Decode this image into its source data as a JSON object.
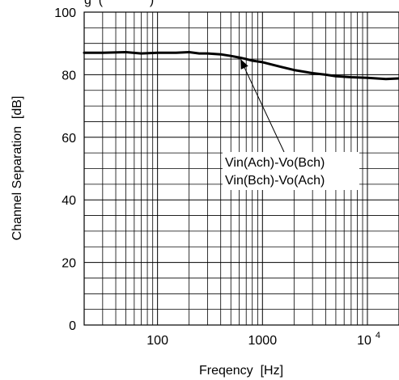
{
  "chart_data": {
    "type": "line",
    "title_fragment": "g  (             )",
    "xlabel": "Freqency  [Hz]",
    "ylabel": "Channel Separation  [dB]",
    "xscale": "log",
    "xlim": [
      20,
      20000
    ],
    "ylim": [
      0,
      100
    ],
    "grid": true,
    "x_ticks": [
      {
        "value": 100,
        "label": "100"
      },
      {
        "value": 1000,
        "label": "1000"
      },
      {
        "value": 10000,
        "label": "10",
        "sup": "4"
      }
    ],
    "y_ticks": [
      {
        "value": 0,
        "label": "0"
      },
      {
        "value": 20,
        "label": "20"
      },
      {
        "value": 40,
        "label": "40"
      },
      {
        "value": 60,
        "label": "60"
      },
      {
        "value": 80,
        "label": "80"
      },
      {
        "value": 100,
        "label": "100"
      }
    ],
    "series": [
      {
        "x": [
          20,
          30,
          50,
          70,
          100,
          150,
          200,
          250,
          300,
          400,
          500,
          600,
          700,
          800,
          1000,
          1500,
          2000,
          3000,
          4000,
          5000,
          7000,
          10000,
          15000,
          20000
        ],
        "y": [
          87,
          87,
          87.2,
          86.8,
          87,
          87,
          87.2,
          86.8,
          86.8,
          86.5,
          86,
          85.5,
          85,
          84.5,
          84,
          82.5,
          81.5,
          80.5,
          80,
          79.5,
          79.2,
          79,
          78.6,
          78.8
        ]
      }
    ],
    "annotation": {
      "lines": [
        "Vin(Ach)-Vo(Bch)",
        "Vin(Bch)-Vo(Ach)"
      ],
      "arrow_to": {
        "x": 600,
        "y": 85.3
      }
    }
  }
}
